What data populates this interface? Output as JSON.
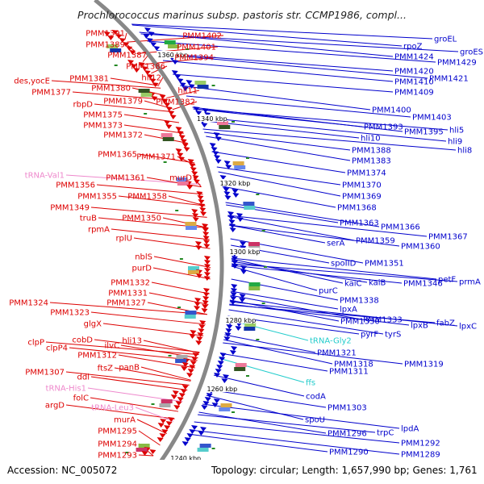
{
  "title": "Prochlorococcus marinus subsp. pastoris str. CCMP1986, compl...",
  "accession": "Accession: NC_005072",
  "topology": "Topology: circular; Length: 1,657,990 bp; Genes: 1,761",
  "colors": {
    "reverse": "#dd0000",
    "forward": "#0000cc",
    "trna": "#ee88cc",
    "rrna": "#22cccc",
    "backbone": "#888888"
  },
  "kbp_marks": [
    "1360 kbp",
    "1340 kbp",
    "1320 kbp",
    "1300 kbp",
    "1280 kbp",
    "1260 kbp",
    "1240 kbp"
  ],
  "left_labels": [
    {
      "text": "PMM1391",
      "type": "reverse"
    },
    {
      "text": "PMM1402",
      "type": "reverse"
    },
    {
      "text": "PMM1389",
      "type": "reverse"
    },
    {
      "text": "PMM1401",
      "type": "reverse"
    },
    {
      "text": "PMM1387",
      "type": "reverse"
    },
    {
      "text": "PMM1394",
      "type": "reverse"
    },
    {
      "text": "PMM1386",
      "type": "reverse"
    },
    {
      "text": "des,yocE",
      "type": "reverse"
    },
    {
      "text": "PMM1381",
      "type": "reverse"
    },
    {
      "text": "hli12",
      "type": "reverse"
    },
    {
      "text": "PMM1377",
      "type": "reverse"
    },
    {
      "text": "PMM1380",
      "type": "reverse"
    },
    {
      "text": "hli11",
      "type": "reverse"
    },
    {
      "text": "rbpD",
      "type": "reverse"
    },
    {
      "text": "PMM1379",
      "type": "reverse"
    },
    {
      "text": "PMM1382",
      "type": "reverse"
    },
    {
      "text": "PMM1375",
      "type": "reverse"
    },
    {
      "text": "PMM1373",
      "type": "reverse"
    },
    {
      "text": "PMM1372",
      "type": "reverse"
    },
    {
      "text": "PMM1365",
      "type": "reverse"
    },
    {
      "text": "PMM1371",
      "type": "reverse"
    },
    {
      "text": "tRNA-Val1",
      "type": "trna"
    },
    {
      "text": "PMM1361",
      "type": "reverse"
    },
    {
      "text": "murD",
      "type": "reverse"
    },
    {
      "text": "PMM1356",
      "type": "reverse"
    },
    {
      "text": "PMM1355",
      "type": "reverse"
    },
    {
      "text": "PMM1358",
      "type": "reverse"
    },
    {
      "text": "PMM1349",
      "type": "reverse"
    },
    {
      "text": "truB",
      "type": "reverse"
    },
    {
      "text": "PMM1350",
      "type": "reverse"
    },
    {
      "text": "rpmA",
      "type": "reverse"
    },
    {
      "text": "rplU",
      "type": "reverse"
    },
    {
      "text": "nblS",
      "type": "reverse"
    },
    {
      "text": "purD",
      "type": "reverse"
    },
    {
      "text": "PMM1332",
      "type": "reverse"
    },
    {
      "text": "PMM1331",
      "type": "reverse"
    },
    {
      "text": "PMM1324",
      "type": "reverse"
    },
    {
      "text": "PMM1327",
      "type": "reverse"
    },
    {
      "text": "PMM1323",
      "type": "reverse"
    },
    {
      "text": "glgX",
      "type": "reverse"
    },
    {
      "text": "cobD",
      "type": "reverse"
    },
    {
      "text": "hli13",
      "type": "reverse"
    },
    {
      "text": "clpP",
      "type": "reverse"
    },
    {
      "text": "ilvC",
      "type": "reverse"
    },
    {
      "text": "clpP4",
      "type": "reverse"
    },
    {
      "text": "PMM1312",
      "type": "reverse"
    },
    {
      "text": "ftsZ",
      "type": "reverse"
    },
    {
      "text": "panB",
      "type": "reverse"
    },
    {
      "text": "PMM1307",
      "type": "reverse"
    },
    {
      "text": "ddl",
      "type": "reverse"
    },
    {
      "text": "tRNA-His1",
      "type": "trna"
    },
    {
      "text": "folC",
      "type": "reverse"
    },
    {
      "text": "argD",
      "type": "reverse"
    },
    {
      "text": "tRNA-Leu3",
      "type": "trna"
    },
    {
      "text": "murA",
      "type": "reverse"
    },
    {
      "text": "PMM1295",
      "type": "reverse"
    },
    {
      "text": "PMM1294",
      "type": "reverse"
    },
    {
      "text": "PMM1293",
      "type": "reverse"
    }
  ],
  "right_labels": [
    {
      "text": "groEL",
      "type": "forward"
    },
    {
      "text": "rpoZ",
      "type": "forward"
    },
    {
      "text": "groES",
      "type": "forward"
    },
    {
      "text": "PMM1424",
      "type": "forward"
    },
    {
      "text": "PMM1429",
      "type": "forward"
    },
    {
      "text": "PMM1420",
      "type": "forward"
    },
    {
      "text": "PMM1421",
      "type": "forward"
    },
    {
      "text": "PMM1410",
      "type": "forward"
    },
    {
      "text": "PMM1409",
      "type": "forward"
    },
    {
      "text": "PMM1400",
      "type": "forward"
    },
    {
      "text": "PMM1403",
      "type": "forward"
    },
    {
      "text": "PMM1393",
      "type": "forward"
    },
    {
      "text": "PMM1395",
      "type": "forward"
    },
    {
      "text": "hli5",
      "type": "forward"
    },
    {
      "text": "hli10",
      "type": "forward"
    },
    {
      "text": "hli9",
      "type": "forward"
    },
    {
      "text": "hli8",
      "type": "forward"
    },
    {
      "text": "PMM1388",
      "type": "forward"
    },
    {
      "text": "PMM1383",
      "type": "forward"
    },
    {
      "text": "PMM1374",
      "type": "forward"
    },
    {
      "text": "PMM1370",
      "type": "forward"
    },
    {
      "text": "PMM1369",
      "type": "forward"
    },
    {
      "text": "PMM1368",
      "type": "forward"
    },
    {
      "text": "PMM1363",
      "type": "forward"
    },
    {
      "text": "PMM1366",
      "type": "forward"
    },
    {
      "text": "PMM1367",
      "type": "forward"
    },
    {
      "text": "serA",
      "type": "forward"
    },
    {
      "text": "PMM1359",
      "type": "forward"
    },
    {
      "text": "PMM1360",
      "type": "forward"
    },
    {
      "text": "spoIID",
      "type": "forward"
    },
    {
      "text": "PMM1351",
      "type": "forward"
    },
    {
      "text": "petF",
      "type": "forward"
    },
    {
      "text": "prmA",
      "type": "forward"
    },
    {
      "text": "kaiC",
      "type": "forward"
    },
    {
      "text": "kaiB",
      "type": "forward"
    },
    {
      "text": "PMM1346",
      "type": "forward"
    },
    {
      "text": "purC",
      "type": "forward"
    },
    {
      "text": "PMM1338",
      "type": "forward"
    },
    {
      "text": "lpxA",
      "type": "forward"
    },
    {
      "text": "PMM1333",
      "type": "forward"
    },
    {
      "text": "lpxB",
      "type": "forward"
    },
    {
      "text": "fabZ",
      "type": "forward"
    },
    {
      "text": "lpxC",
      "type": "forward"
    },
    {
      "text": "PMM1330",
      "type": "forward"
    },
    {
      "text": "pyrF",
      "type": "forward"
    },
    {
      "text": "tyrS",
      "type": "forward"
    },
    {
      "text": "tRNA-Gly2",
      "type": "rrna"
    },
    {
      "text": "PMM1321",
      "type": "forward"
    },
    {
      "text": "PMM1318",
      "type": "forward"
    },
    {
      "text": "PMM1319",
      "type": "forward"
    },
    {
      "text": "PMM1311",
      "type": "forward"
    },
    {
      "text": "ffs",
      "type": "rrna"
    },
    {
      "text": "codA",
      "type": "forward"
    },
    {
      "text": "PMM1303",
      "type": "forward"
    },
    {
      "text": "spoU",
      "type": "forward"
    },
    {
      "text": "PMM1296",
      "type": "forward"
    },
    {
      "text": "trpC",
      "type": "forward"
    },
    {
      "text": "lpdA",
      "type": "forward"
    },
    {
      "text": "PMM1292",
      "type": "forward"
    },
    {
      "text": "PMM1290",
      "type": "forward"
    },
    {
      "text": "PMM1289",
      "type": "forward"
    }
  ]
}
